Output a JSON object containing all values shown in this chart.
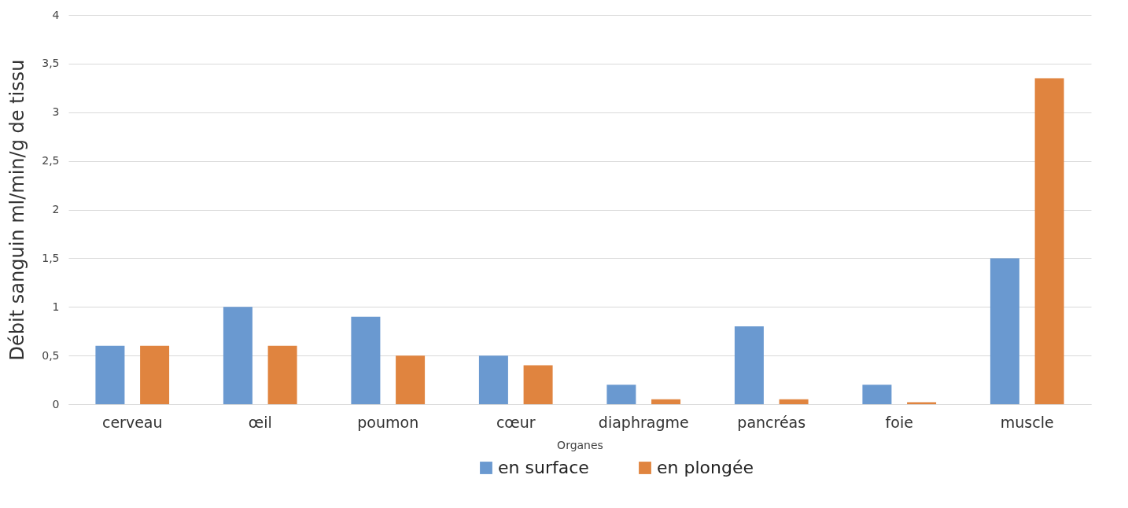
{
  "chart_data": {
    "type": "bar",
    "xlabel": "Organes",
    "ylabel": "Débit sanguin ml/min/g de tissu",
    "categories": [
      "cerveau",
      "œil",
      "poumon",
      "cœur",
      "diaphragme",
      "pancréas",
      "foie",
      "muscle"
    ],
    "series": [
      {
        "name": "en surface",
        "color": "#6a99d0",
        "values": [
          0.6,
          1.0,
          0.9,
          0.5,
          0.2,
          0.8,
          0.2,
          1.5
        ]
      },
      {
        "name": "en plongée",
        "color": "#e0843f",
        "values": [
          0.6,
          0.6,
          0.5,
          0.4,
          0.05,
          0.05,
          0.02,
          3.35
        ]
      }
    ],
    "ylim": [
      0,
      4
    ],
    "yticks": [
      0,
      {
        "value": 0.5,
        "label": "0,5"
      },
      1,
      {
        "value": 1.5,
        "label": "1,5"
      },
      2,
      {
        "value": 2.5,
        "label": "2,5"
      },
      3,
      {
        "value": 3.5,
        "label": "3,5"
      },
      4
    ],
    "grid": "y",
    "legend": "bottom"
  }
}
